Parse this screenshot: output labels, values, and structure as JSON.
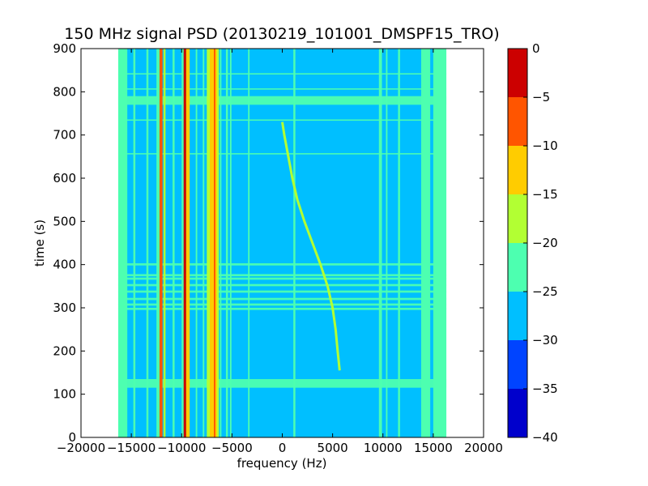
{
  "chart_data": {
    "type": "heatmap",
    "title": "150 MHz signal PSD (20130219_101001_DMSPF15_TRO)",
    "xlabel": "frequency (Hz)",
    "ylabel": "time (s)",
    "xlim": [
      -20000,
      20000
    ],
    "ylim": [
      0,
      900
    ],
    "x_ticks": [
      -20000,
      -15000,
      -10000,
      -5000,
      0,
      5000,
      10000,
      15000,
      20000
    ],
    "x_tick_labels": [
      "−20000",
      "−15000",
      "−10000",
      "−5000",
      "0",
      "5000",
      "10000",
      "15000",
      "20000"
    ],
    "y_ticks": [
      0,
      100,
      200,
      300,
      400,
      500,
      600,
      700,
      800,
      900
    ],
    "y_tick_labels": [
      "0",
      "100",
      "200",
      "300",
      "400",
      "500",
      "600",
      "700",
      "800",
      "900"
    ],
    "data_extent_x": [
      -16300,
      16300
    ],
    "data_extent_y": [
      0,
      900
    ],
    "background_level": -27.5,
    "colorbar": {
      "levels": [
        -40,
        -35,
        -30,
        -25,
        -20,
        -15,
        -10,
        -5,
        0
      ],
      "tick_labels": [
        "−40",
        "−35",
        "−30",
        "−25",
        "−20",
        "−15",
        "−10",
        "−5",
        "0"
      ],
      "colors": [
        "#0000cc",
        "#0044ff",
        "#00bfff",
        "#4dffb0",
        "#b2ff33",
        "#ffcc00",
        "#ff5500",
        "#cc0000"
      ]
    },
    "vertical_bands": [
      {
        "x0": -16300,
        "x1": -15400,
        "level": -22.5
      },
      {
        "x0": -14800,
        "x1": -14600,
        "level": -22.5
      },
      {
        "x0": -13500,
        "x1": -13300,
        "level": -22.5
      },
      {
        "x0": -12500,
        "x1": -12200,
        "level": -22.5
      },
      {
        "x0": -12200,
        "x1": -11900,
        "level": -7.5
      },
      {
        "x0": -11800,
        "x1": -11600,
        "level": -17.5
      },
      {
        "x0": -10900,
        "x1": -10700,
        "level": -22.5
      },
      {
        "x0": -10000,
        "x1": -9800,
        "level": -22.5
      },
      {
        "x0": -9800,
        "x1": -9550,
        "level": -2.5
      },
      {
        "x0": -9550,
        "x1": -9200,
        "level": -12.5
      },
      {
        "x0": -8600,
        "x1": -8450,
        "level": -22.5
      },
      {
        "x0": -7900,
        "x1": -7750,
        "level": -22.5
      },
      {
        "x0": -7500,
        "x1": -6300,
        "level": -17.5
      },
      {
        "x0": -7200,
        "x1": -6500,
        "level": -12.5
      },
      {
        "x0": -6800,
        "x1": -6650,
        "level": -7.5
      },
      {
        "x0": -6200,
        "x1": -6050,
        "level": -22.5
      },
      {
        "x0": -5600,
        "x1": -5400,
        "level": -22.5
      },
      {
        "x0": -5200,
        "x1": -5050,
        "level": -22.5
      },
      {
        "x0": -3400,
        "x1": -3250,
        "level": -22.5
      },
      {
        "x0": 1100,
        "x1": 1300,
        "level": -22.5
      },
      {
        "x0": 9600,
        "x1": 9900,
        "level": -22.5
      },
      {
        "x0": 10300,
        "x1": 10450,
        "level": -22.5
      },
      {
        "x0": 11500,
        "x1": 11700,
        "level": -22.5
      },
      {
        "x0": 13800,
        "x1": 14700,
        "level": -22.5
      },
      {
        "x0": 15000,
        "x1": 16300,
        "level": -22.5
      }
    ],
    "horizontal_bands": [
      {
        "y0": 115,
        "y1": 135,
        "level": -22.5
      },
      {
        "y0": 770,
        "y1": 790,
        "level": -22.5
      },
      {
        "y0": 295,
        "y1": 300,
        "level": -22.5
      },
      {
        "y0": 305,
        "y1": 310,
        "level": -22.5
      },
      {
        "y0": 318,
        "y1": 323,
        "level": -22.5
      },
      {
        "y0": 335,
        "y1": 340,
        "level": -22.5
      },
      {
        "y0": 350,
        "y1": 355,
        "level": -22.5
      },
      {
        "y0": 365,
        "y1": 370,
        "level": -22.5
      },
      {
        "y0": 373,
        "y1": 378,
        "level": -22.5
      },
      {
        "y0": 398,
        "y1": 403,
        "level": -22.5
      },
      {
        "y0": 733,
        "y1": 736,
        "level": -22.5
      },
      {
        "y0": 655,
        "y1": 658,
        "level": -22.5
      },
      {
        "y0": 805,
        "y1": 808,
        "level": -22.5
      },
      {
        "y0": 840,
        "y1": 843,
        "level": -22.5
      }
    ],
    "signal_trace": {
      "level": -17.5,
      "points": [
        {
          "time": 730,
          "frequency": 0
        },
        {
          "time": 700,
          "frequency": 200
        },
        {
          "time": 650,
          "frequency": 600
        },
        {
          "time": 600,
          "frequency": 1000
        },
        {
          "time": 550,
          "frequency": 1500
        },
        {
          "time": 500,
          "frequency": 2200
        },
        {
          "time": 450,
          "frequency": 3000
        },
        {
          "time": 400,
          "frequency": 3800
        },
        {
          "time": 350,
          "frequency": 4500
        },
        {
          "time": 300,
          "frequency": 5000
        },
        {
          "time": 250,
          "frequency": 5300
        },
        {
          "time": 200,
          "frequency": 5500
        },
        {
          "time": 155,
          "frequency": 5700
        }
      ]
    }
  }
}
